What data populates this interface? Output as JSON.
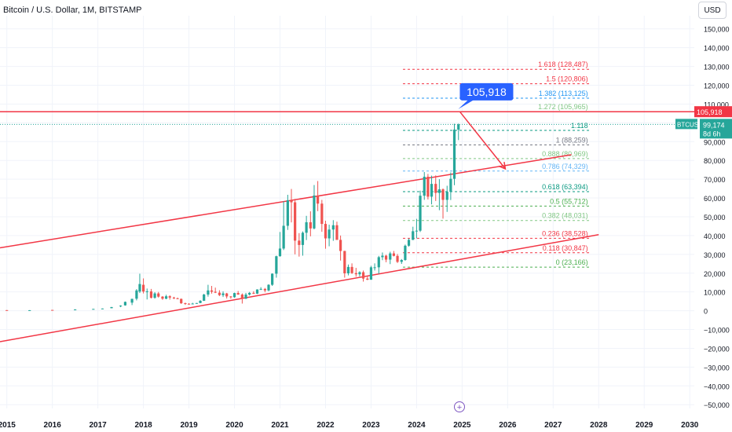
{
  "title": "Bitcoin / U.S. Dollar, 1M, BITSTAMP",
  "currency_button": "USD",
  "colors": {
    "up": "#26a69a",
    "down": "#ef5350",
    "channel": "#f23645",
    "callout": "#2962ff",
    "grid": "#f0f3fa"
  },
  "chart_data": {
    "type": "candlestick",
    "symbol": "BTCUSD",
    "x_labels": [
      "2015",
      "2016",
      "2017",
      "2018",
      "2019",
      "2020",
      "2021",
      "2022",
      "2023",
      "2024",
      "2025",
      "2026",
      "2027",
      "2028",
      "2029",
      "2030"
    ],
    "y_ticks": [
      150000,
      140000,
      130000,
      120000,
      110000,
      100000,
      90000,
      80000,
      70000,
      60000,
      50000,
      40000,
      30000,
      20000,
      10000,
      0,
      -10000,
      -20000,
      -30000,
      -40000,
      -50000
    ],
    "y_tick_labels": [
      "150,000",
      "140,000",
      "130,000",
      "120,000",
      "110,000",
      "100,000",
      "90,000",
      "80,000",
      "70,000",
      "60,000",
      "50,000",
      "40,000",
      "30,000",
      "20,000",
      "10,000",
      "0",
      "−10,000",
      "−20,000",
      "−30,000",
      "−40,000",
      "−50,000"
    ],
    "ylim": [
      -52000,
      157000
    ],
    "xlim": [
      2014.85,
      2030.1
    ],
    "price_marker": {
      "label": "105,918",
      "value": 105918
    },
    "current_price": {
      "symbol": "BTCUSD",
      "value_label": "99,174",
      "value": 99174,
      "countdown": "8d 6h"
    },
    "callout": {
      "label": "105,918",
      "year": 2024.95,
      "value": 116500
    },
    "fib_levels": [
      {
        "ratio": "1.618",
        "label": "1.618 (128,487)",
        "value": 128487,
        "color": "#f23645"
      },
      {
        "ratio": "1.5",
        "label": "1.5 (120,806)",
        "value": 120806,
        "color": "#f23645"
      },
      {
        "ratio": "1.382",
        "label": "1.382 (113,125)",
        "value": 113125,
        "color": "#2196f3"
      },
      {
        "ratio": "1.272",
        "label": "1.272 (105,965)",
        "value": 105965,
        "color": "#81c784"
      },
      {
        "ratio": "1.118",
        "label": "1.118",
        "value": 95965,
        "color": "#089981"
      },
      {
        "ratio": "1",
        "label": "1 (88,259)",
        "value": 88259,
        "color": "#787b86"
      },
      {
        "ratio": "0.888",
        "label": "0.888 (80,969)",
        "value": 80969,
        "color": "#81c784"
      },
      {
        "ratio": "0.786",
        "label": "0.786 (74,329)",
        "value": 74329,
        "color": "#64b5f6"
      },
      {
        "ratio": "0.618",
        "label": "0.618 (63,394)",
        "value": 63394,
        "color": "#089981"
      },
      {
        "ratio": "0.5",
        "label": "0.5 (55,712)",
        "value": 55712,
        "color": "#4caf50"
      },
      {
        "ratio": "0.382",
        "label": "0.382 (48,031)",
        "value": 48031,
        "color": "#81c784"
      },
      {
        "ratio": "0.236",
        "label": "0.236 (38,528)",
        "value": 38528,
        "color": "#f23645"
      },
      {
        "ratio": "0.118",
        "label": "0.118 (30,847)",
        "value": 30847,
        "color": "#f23645"
      },
      {
        "ratio": "0",
        "label": "0 (23,166)",
        "value": 23166,
        "color": "#4caf50"
      }
    ],
    "fib_x_range": [
      2023.7,
      2027.8
    ],
    "channel_upper": [
      [
        2014.85,
        33500
      ],
      [
        2027.4,
        83000
      ]
    ],
    "channel_lower": [
      [
        2014.85,
        -16500
      ],
      [
        2028.0,
        40500
      ]
    ],
    "horizontal_line": {
      "value": 105918
    },
    "projection_arrow": [
      [
        2024.95,
        105918
      ],
      [
        2025.95,
        75500
      ]
    ],
    "candles": [
      {
        "t": 2015.0,
        "o": 320,
        "h": 330,
        "l": 200,
        "c": 230
      },
      {
        "t": 2015.5,
        "o": 230,
        "h": 300,
        "l": 210,
        "c": 280
      },
      {
        "t": 2016.0,
        "o": 430,
        "h": 450,
        "l": 360,
        "c": 370
      },
      {
        "t": 2016.5,
        "o": 600,
        "h": 770,
        "l": 540,
        "c": 660
      },
      {
        "t": 2016.9,
        "o": 740,
        "h": 980,
        "l": 720,
        "c": 960
      },
      {
        "t": 2017.1,
        "o": 960,
        "h": 1200,
        "l": 900,
        "c": 1180
      },
      {
        "t": 2017.3,
        "o": 1350,
        "h": 2000,
        "l": 1300,
        "c": 1950
      },
      {
        "t": 2017.5,
        "o": 2400,
        "h": 2900,
        "l": 1900,
        "c": 2700
      },
      {
        "t": 2017.6,
        "o": 2850,
        "h": 4900,
        "l": 2700,
        "c": 4700
      },
      {
        "t": 2017.75,
        "o": 4300,
        "h": 6400,
        "l": 3000,
        "c": 6300
      },
      {
        "t": 2017.85,
        "o": 6400,
        "h": 11500,
        "l": 5500,
        "c": 10800
      },
      {
        "t": 2017.92,
        "o": 10200,
        "h": 19700,
        "l": 9400,
        "c": 14200
      },
      {
        "t": 2018.0,
        "o": 13800,
        "h": 17200,
        "l": 9200,
        "c": 10200
      },
      {
        "t": 2018.08,
        "o": 10200,
        "h": 11800,
        "l": 6000,
        "c": 10300
      },
      {
        "t": 2018.17,
        "o": 10300,
        "h": 11600,
        "l": 6500,
        "c": 6900
      },
      {
        "t": 2018.25,
        "o": 6900,
        "h": 9900,
        "l": 6400,
        "c": 9200
      },
      {
        "t": 2018.33,
        "o": 9200,
        "h": 10000,
        "l": 7000,
        "c": 7500
      },
      {
        "t": 2018.42,
        "o": 7500,
        "h": 7800,
        "l": 5800,
        "c": 6400
      },
      {
        "t": 2018.5,
        "o": 6400,
        "h": 8500,
        "l": 6100,
        "c": 7700
      },
      {
        "t": 2018.58,
        "o": 7700,
        "h": 8200,
        "l": 5900,
        "c": 7000
      },
      {
        "t": 2018.67,
        "o": 7000,
        "h": 7400,
        "l": 6200,
        "c": 6600
      },
      {
        "t": 2018.75,
        "o": 6600,
        "h": 7000,
        "l": 6200,
        "c": 6300
      },
      {
        "t": 2018.83,
        "o": 6300,
        "h": 6500,
        "l": 3600,
        "c": 4000
      },
      {
        "t": 2018.92,
        "o": 4000,
        "h": 4300,
        "l": 3100,
        "c": 3700
      },
      {
        "t": 2019.0,
        "o": 3700,
        "h": 4000,
        "l": 3300,
        "c": 3400
      },
      {
        "t": 2019.08,
        "o": 3400,
        "h": 4200,
        "l": 3400,
        "c": 3800
      },
      {
        "t": 2019.17,
        "o": 3800,
        "h": 4100,
        "l": 3700,
        "c": 4100
      },
      {
        "t": 2019.25,
        "o": 4100,
        "h": 5600,
        "l": 4000,
        "c": 5300
      },
      {
        "t": 2019.33,
        "o": 5300,
        "h": 9000,
        "l": 5200,
        "c": 8600
      },
      {
        "t": 2019.42,
        "o": 8600,
        "h": 13800,
        "l": 7500,
        "c": 10800
      },
      {
        "t": 2019.5,
        "o": 10800,
        "h": 13200,
        "l": 9100,
        "c": 10100
      },
      {
        "t": 2019.58,
        "o": 10100,
        "h": 12300,
        "l": 9400,
        "c": 9600
      },
      {
        "t": 2019.67,
        "o": 9600,
        "h": 10900,
        "l": 7800,
        "c": 8300
      },
      {
        "t": 2019.75,
        "o": 8300,
        "h": 10300,
        "l": 7300,
        "c": 9200
      },
      {
        "t": 2019.83,
        "o": 9200,
        "h": 9500,
        "l": 6500,
        "c": 7600
      },
      {
        "t": 2019.92,
        "o": 7600,
        "h": 7800,
        "l": 6400,
        "c": 7200
      },
      {
        "t": 2020.0,
        "o": 7200,
        "h": 9600,
        "l": 6900,
        "c": 9400
      },
      {
        "t": 2020.08,
        "o": 9400,
        "h": 10500,
        "l": 8500,
        "c": 8600
      },
      {
        "t": 2020.17,
        "o": 8600,
        "h": 9200,
        "l": 3800,
        "c": 6400
      },
      {
        "t": 2020.25,
        "o": 6400,
        "h": 9500,
        "l": 6200,
        "c": 8600
      },
      {
        "t": 2020.33,
        "o": 8600,
        "h": 10000,
        "l": 8100,
        "c": 9500
      },
      {
        "t": 2020.42,
        "o": 9500,
        "h": 10400,
        "l": 8900,
        "c": 9100
      },
      {
        "t": 2020.5,
        "o": 9100,
        "h": 11400,
        "l": 8900,
        "c": 11300
      },
      {
        "t": 2020.58,
        "o": 11300,
        "h": 12500,
        "l": 11000,
        "c": 11600
      },
      {
        "t": 2020.67,
        "o": 11600,
        "h": 12100,
        "l": 9800,
        "c": 10800
      },
      {
        "t": 2020.75,
        "o": 10800,
        "h": 14100,
        "l": 10400,
        "c": 13800
      },
      {
        "t": 2020.83,
        "o": 13800,
        "h": 19900,
        "l": 13200,
        "c": 19700
      },
      {
        "t": 2020.92,
        "o": 19700,
        "h": 29300,
        "l": 17600,
        "c": 29000
      },
      {
        "t": 2021.0,
        "o": 29000,
        "h": 41900,
        "l": 28800,
        "c": 33100
      },
      {
        "t": 2021.08,
        "o": 33100,
        "h": 58300,
        "l": 32300,
        "c": 45200
      },
      {
        "t": 2021.17,
        "o": 45200,
        "h": 61700,
        "l": 43000,
        "c": 58800
      },
      {
        "t": 2021.25,
        "o": 58800,
        "h": 64800,
        "l": 47000,
        "c": 57700
      },
      {
        "t": 2021.33,
        "o": 57700,
        "h": 59500,
        "l": 30000,
        "c": 37300
      },
      {
        "t": 2021.42,
        "o": 37300,
        "h": 41300,
        "l": 28800,
        "c": 35000
      },
      {
        "t": 2021.5,
        "o": 35000,
        "h": 42200,
        "l": 29300,
        "c": 41500
      },
      {
        "t": 2021.58,
        "o": 41500,
        "h": 50500,
        "l": 37600,
        "c": 47100
      },
      {
        "t": 2021.67,
        "o": 47100,
        "h": 52900,
        "l": 39600,
        "c": 43800
      },
      {
        "t": 2021.75,
        "o": 43800,
        "h": 66900,
        "l": 43300,
        "c": 61300
      },
      {
        "t": 2021.83,
        "o": 61300,
        "h": 69000,
        "l": 53000,
        "c": 57000
      },
      {
        "t": 2021.92,
        "o": 57000,
        "h": 59000,
        "l": 42000,
        "c": 46200
      },
      {
        "t": 2022.0,
        "o": 46200,
        "h": 47900,
        "l": 33000,
        "c": 38500
      },
      {
        "t": 2022.08,
        "o": 38500,
        "h": 45800,
        "l": 34300,
        "c": 43200
      },
      {
        "t": 2022.17,
        "o": 43200,
        "h": 48200,
        "l": 37200,
        "c": 45500
      },
      {
        "t": 2022.25,
        "o": 45500,
        "h": 47400,
        "l": 37700,
        "c": 37700
      },
      {
        "t": 2022.33,
        "o": 37700,
        "h": 40000,
        "l": 26700,
        "c": 31800
      },
      {
        "t": 2022.42,
        "o": 31800,
        "h": 31900,
        "l": 17600,
        "c": 19900
      },
      {
        "t": 2022.5,
        "o": 19900,
        "h": 24600,
        "l": 18800,
        "c": 23300
      },
      {
        "t": 2022.58,
        "o": 23300,
        "h": 25200,
        "l": 19600,
        "c": 20000
      },
      {
        "t": 2022.67,
        "o": 20000,
        "h": 22800,
        "l": 18100,
        "c": 19400
      },
      {
        "t": 2022.75,
        "o": 19400,
        "h": 21000,
        "l": 18200,
        "c": 20500
      },
      {
        "t": 2022.83,
        "o": 20500,
        "h": 21400,
        "l": 15500,
        "c": 17100
      },
      {
        "t": 2022.92,
        "o": 17100,
        "h": 18400,
        "l": 16300,
        "c": 16500
      },
      {
        "t": 2023.0,
        "o": 16500,
        "h": 23900,
        "l": 16500,
        "c": 23100
      },
      {
        "t": 2023.08,
        "o": 23100,
        "h": 25200,
        "l": 21400,
        "c": 23100
      },
      {
        "t": 2023.17,
        "o": 23100,
        "h": 29200,
        "l": 19600,
        "c": 28500
      },
      {
        "t": 2023.25,
        "o": 28500,
        "h": 31000,
        "l": 26900,
        "c": 29300
      },
      {
        "t": 2023.33,
        "o": 29300,
        "h": 29800,
        "l": 25800,
        "c": 27200
      },
      {
        "t": 2023.42,
        "o": 27200,
        "h": 31400,
        "l": 24800,
        "c": 30500
      },
      {
        "t": 2023.5,
        "o": 30500,
        "h": 31800,
        "l": 28900,
        "c": 29200
      },
      {
        "t": 2023.58,
        "o": 29200,
        "h": 30200,
        "l": 25400,
        "c": 26000
      },
      {
        "t": 2023.67,
        "o": 26000,
        "h": 27500,
        "l": 24900,
        "c": 27000
      },
      {
        "t": 2023.75,
        "o": 27000,
        "h": 35200,
        "l": 26600,
        "c": 34600
      },
      {
        "t": 2023.83,
        "o": 34600,
        "h": 38400,
        "l": 34100,
        "c": 37700
      },
      {
        "t": 2023.92,
        "o": 37700,
        "h": 44700,
        "l": 37600,
        "c": 42300
      },
      {
        "t": 2024.0,
        "o": 42300,
        "h": 48900,
        "l": 38500,
        "c": 42600
      },
      {
        "t": 2024.08,
        "o": 42600,
        "h": 63900,
        "l": 41900,
        "c": 61200
      },
      {
        "t": 2024.17,
        "o": 61200,
        "h": 73800,
        "l": 59000,
        "c": 71300
      },
      {
        "t": 2024.25,
        "o": 71300,
        "h": 72800,
        "l": 59200,
        "c": 60700
      },
      {
        "t": 2024.33,
        "o": 60700,
        "h": 71900,
        "l": 56600,
        "c": 67500
      },
      {
        "t": 2024.42,
        "o": 67500,
        "h": 72000,
        "l": 58400,
        "c": 62700
      },
      {
        "t": 2024.5,
        "o": 62700,
        "h": 70000,
        "l": 53500,
        "c": 64600
      },
      {
        "t": 2024.58,
        "o": 64600,
        "h": 65100,
        "l": 49000,
        "c": 59000
      },
      {
        "t": 2024.67,
        "o": 59000,
        "h": 66500,
        "l": 52600,
        "c": 63300
      },
      {
        "t": 2024.75,
        "o": 63300,
        "h": 73600,
        "l": 58900,
        "c": 70200
      },
      {
        "t": 2024.83,
        "o": 70200,
        "h": 99500,
        "l": 66800,
        "c": 96400
      },
      {
        "t": 2024.92,
        "o": 96400,
        "h": 99600,
        "l": 90800,
        "c": 99174
      }
    ]
  }
}
